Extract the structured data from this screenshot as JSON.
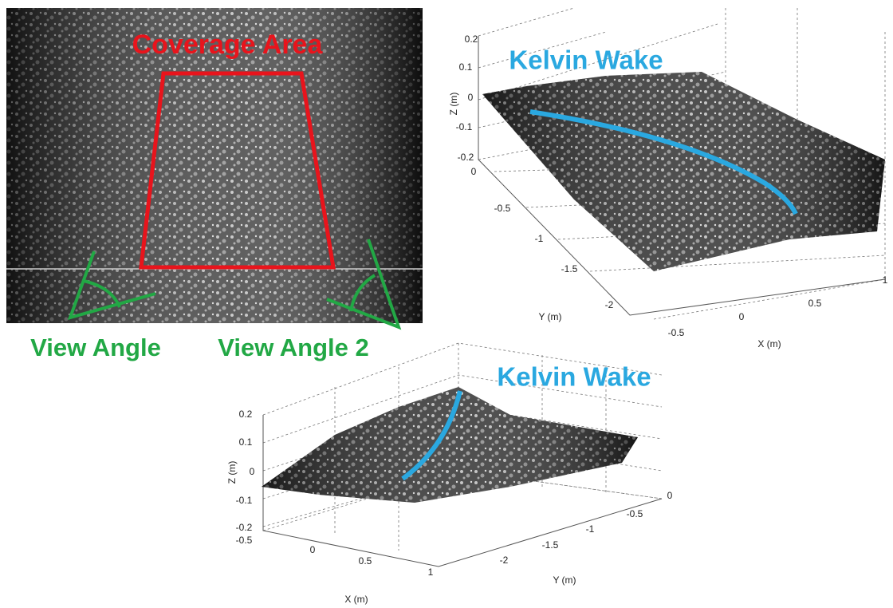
{
  "photo": {
    "coverage_label": "Coverage Area",
    "view_angle_1": "View Angle",
    "view_angle_2": "View Angle 2"
  },
  "plot_top": {
    "annotation": "Kelvin Wake",
    "z_label": "Z (m)",
    "y_label": "Y (m)",
    "x_label": "X (m)",
    "z_ticks": [
      "0.2",
      "0.1",
      "0",
      "-0.1",
      "-0.2"
    ],
    "y_ticks": [
      "0",
      "-0.5",
      "-1",
      "-1.5",
      "-2"
    ],
    "x_ticks": [
      "-0.5",
      "0",
      "0.5",
      "1"
    ]
  },
  "plot_bottom": {
    "annotation": "Kelvin Wake",
    "z_label": "Z (m)",
    "y_label": "Y (m)",
    "x_label": "X (m)",
    "z_ticks": [
      "0.2",
      "0.1",
      "0",
      "-0.1",
      "-0.2"
    ],
    "x_ticks": [
      "-0.5",
      "0",
      "0.5",
      "1"
    ],
    "y_ticks": [
      "-2",
      "-1.5",
      "-1",
      "-0.5",
      "0"
    ]
  }
}
